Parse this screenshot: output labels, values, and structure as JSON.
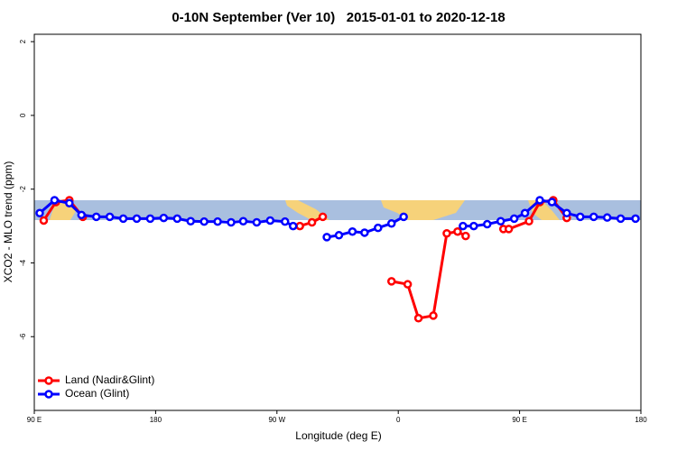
{
  "chart_data": {
    "type": "line",
    "title": "0-10N September (Ver 10)   2015-01-01 to 2020-12-18",
    "x_label": "Longitude (deg E)",
    "y_label": "XCO2 - MLO trend (ppm)",
    "xlim": [
      90,
      540
    ],
    "xticks": [
      {
        "value": 90,
        "label": "90 E"
      },
      180,
      {
        "value": 270,
        "label": "90 W"
      },
      {
        "value": 360,
        "label": "0"
      },
      {
        "value": 450,
        "label": "90 E"
      },
      {
        "value": 540,
        "label": "180"
      }
    ],
    "ylim": [
      -8,
      2.2
    ],
    "yticks": [
      2,
      0,
      -2,
      -4,
      -6
    ],
    "legend": "bottom-left",
    "series": [
      {
        "name": "Land (Nadir&Glint)",
        "color": "#ff0000",
        "x": [
          97,
          106,
          116,
          126,
          null,
          287,
          296,
          304,
          null,
          355,
          367,
          375,
          386,
          396,
          404,
          410,
          null,
          438,
          442,
          457,
          465,
          475,
          485
        ],
        "values": [
          -2.85,
          -2.35,
          -2.3,
          -2.75,
          null,
          -3.0,
          -2.9,
          -2.75,
          null,
          -4.5,
          -4.58,
          -5.5,
          -5.43,
          -3.2,
          -3.15,
          -3.27,
          null,
          -3.08,
          -3.08,
          -2.87,
          -2.35,
          -2.3,
          -2.78
        ]
      },
      {
        "name": "Ocean (Glint)",
        "color": "#0000ff",
        "x": [
          94,
          105,
          116,
          125,
          136,
          146,
          156,
          166,
          176,
          186,
          196,
          206,
          216,
          226,
          236,
          245,
          255,
          265,
          276,
          282,
          null,
          307,
          316,
          326,
          335,
          345,
          355,
          364,
          null,
          408,
          416,
          426,
          436,
          446,
          454,
          465,
          474,
          485,
          495,
          505,
          515,
          525,
          536
        ],
        "values": [
          -2.65,
          -2.3,
          -2.38,
          -2.7,
          -2.75,
          -2.75,
          -2.8,
          -2.8,
          -2.8,
          -2.78,
          -2.8,
          -2.87,
          -2.88,
          -2.88,
          -2.9,
          -2.87,
          -2.9,
          -2.85,
          -2.88,
          -3.0,
          null,
          -3.3,
          -3.25,
          -3.15,
          -3.18,
          -3.05,
          -2.93,
          -2.75,
          null,
          -3.0,
          -3.0,
          -2.95,
          -2.87,
          -2.8,
          -2.65,
          -2.3,
          -2.35,
          -2.65,
          -2.75,
          -2.75,
          -2.77,
          -2.8,
          -2.8
        ]
      }
    ]
  }
}
